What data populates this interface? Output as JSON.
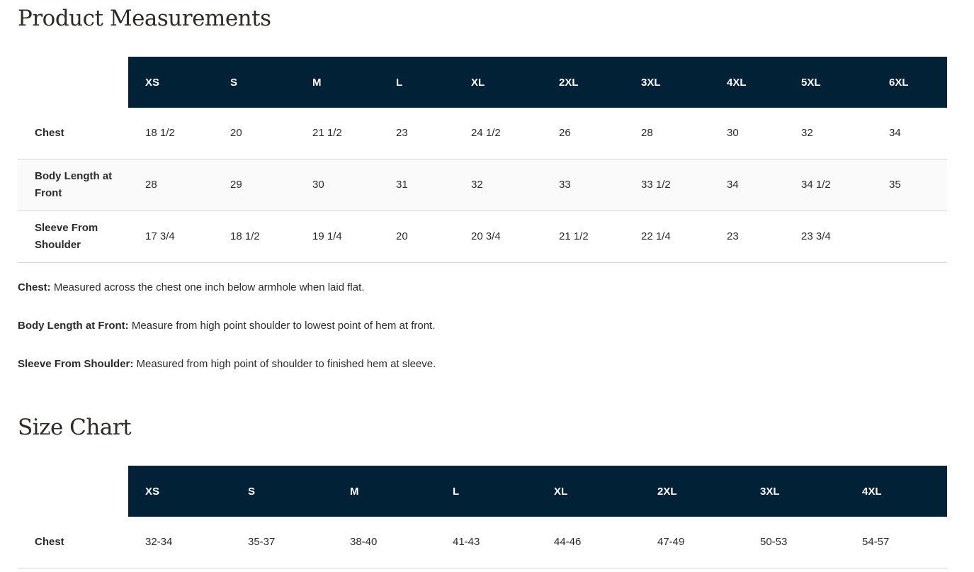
{
  "measurements": {
    "title": "Product Measurements",
    "sizes": [
      "XS",
      "S",
      "M",
      "L",
      "XL",
      "2XL",
      "3XL",
      "4XL",
      "5XL",
      "6XL"
    ],
    "rows": [
      {
        "label": "Chest",
        "values": [
          "18 1/2",
          "20",
          "21 1/2",
          "23",
          "24 1/2",
          "26",
          "28",
          "30",
          "32",
          "34"
        ]
      },
      {
        "label": "Body Length at Front",
        "values": [
          "28",
          "29",
          "30",
          "31",
          "32",
          "33",
          "33 1/2",
          "34",
          "34 1/2",
          "35"
        ]
      },
      {
        "label": "Sleeve From Shoulder",
        "values": [
          "17 3/4",
          "18 1/2",
          "19 1/4",
          "20",
          "20 3/4",
          "21 1/2",
          "22 1/4",
          "23",
          "23 3/4",
          ""
        ]
      }
    ],
    "notes": [
      {
        "term": "Chest:",
        "text": " Measured across the chest one inch below armhole when laid flat."
      },
      {
        "term": "Body Length at Front:",
        "text": " Measure from high point shoulder to lowest point of hem at front."
      },
      {
        "term": "Sleeve From Shoulder:",
        "text": " Measured from high point of shoulder to finished hem at sleeve."
      }
    ]
  },
  "size_chart": {
    "title": "Size Chart",
    "sizes": [
      "XS",
      "S",
      "M",
      "L",
      "XL",
      "2XL",
      "3XL",
      "4XL"
    ],
    "rows": [
      {
        "label": "Chest",
        "values": [
          "32-34",
          "35-37",
          "38-40",
          "41-43",
          "44-46",
          "47-49",
          "50-53",
          "54-57"
        ]
      }
    ]
  },
  "colors": {
    "header_bg": "#012236"
  }
}
